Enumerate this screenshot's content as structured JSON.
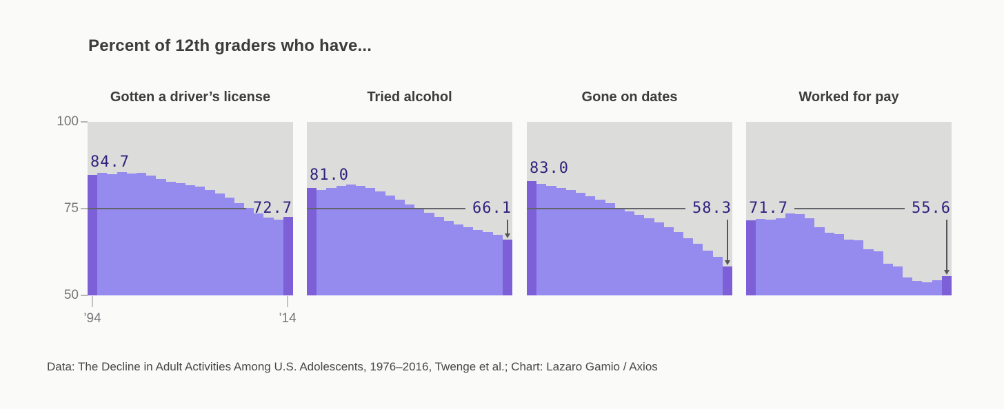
{
  "page": {
    "title": "Percent of 12th graders who have...",
    "footer": "Data: The Decline in Adult Activities Among U.S. Adolescents, 1976–2016, Twenge et al.; Chart: Lazaro Gamio / Axios"
  },
  "axis": {
    "y_ticks": [
      "100",
      "75",
      "50"
    ],
    "x_ticks": [
      "’94",
      "’14"
    ],
    "ylim": [
      50,
      100
    ],
    "ref_line": 75
  },
  "colors": {
    "fill": "#958aee",
    "accent_bar": "#7d60d8",
    "plot_bg": "#dcdcda",
    "value_label": "#31217d",
    "ref_line": "#63636a",
    "axis_text": "#76767a",
    "page_bg": "#fafaf8"
  },
  "chart_data": [
    {
      "type": "bar",
      "title": "Gotten a driver’s license",
      "start_label": "84.7",
      "end_label": "72.7",
      "arrow": false,
      "ylim": [
        50,
        100
      ],
      "ref_line": 75,
      "x_tick_labels": [
        "’94",
        "’14"
      ],
      "years": [
        1994,
        1995,
        1996,
        1997,
        1998,
        1999,
        2000,
        2001,
        2002,
        2003,
        2004,
        2005,
        2006,
        2007,
        2008,
        2009,
        2010,
        2011,
        2012,
        2013,
        2014
      ],
      "values": [
        84.7,
        85.4,
        85.0,
        85.6,
        85.1,
        85.3,
        84.5,
        83.6,
        82.7,
        82.3,
        81.8,
        81.4,
        80.3,
        79.3,
        78.1,
        76.6,
        75.2,
        73.7,
        72.4,
        71.9,
        72.7
      ]
    },
    {
      "type": "bar",
      "title": "Tried alcohol",
      "start_label": "81.0",
      "end_label": "66.1",
      "arrow": true,
      "ylim": [
        50,
        100
      ],
      "ref_line": 75,
      "years": [
        1994,
        1995,
        1996,
        1997,
        1998,
        1999,
        2000,
        2001,
        2002,
        2003,
        2004,
        2005,
        2006,
        2007,
        2008,
        2009,
        2010,
        2011,
        2012,
        2013,
        2014
      ],
      "values": [
        81.0,
        80.4,
        81.0,
        81.6,
        82.0,
        81.6,
        80.9,
        79.9,
        78.7,
        77.5,
        76.2,
        75.0,
        73.8,
        72.6,
        71.5,
        70.5,
        69.6,
        68.8,
        68.3,
        67.5,
        66.1
      ]
    },
    {
      "type": "bar",
      "title": "Gone on dates",
      "start_label": "83.0",
      "end_label": "58.3",
      "arrow": true,
      "ylim": [
        50,
        100
      ],
      "ref_line": 75,
      "years": [
        1994,
        1995,
        1996,
        1997,
        1998,
        1999,
        2000,
        2001,
        2002,
        2003,
        2004,
        2005,
        2006,
        2007,
        2008,
        2009,
        2010,
        2011,
        2012,
        2013,
        2014
      ],
      "values": [
        83.0,
        82.2,
        81.6,
        81.0,
        80.3,
        79.5,
        78.6,
        77.6,
        76.5,
        75.3,
        74.2,
        73.2,
        72.2,
        71.0,
        69.7,
        68.2,
        66.5,
        64.8,
        63.0,
        61.1,
        58.3
      ]
    },
    {
      "type": "bar",
      "title": "Worked for pay",
      "start_label": "71.7",
      "end_label": "55.6",
      "arrow": true,
      "ylim": [
        50,
        100
      ],
      "ref_line": 75,
      "years": [
        1994,
        1995,
        1996,
        1997,
        1998,
        1999,
        2000,
        2001,
        2002,
        2003,
        2004,
        2005,
        2006,
        2007,
        2008,
        2009,
        2010,
        2011,
        2012,
        2013,
        2014
      ],
      "values": [
        71.7,
        72.0,
        71.8,
        72.3,
        73.6,
        73.5,
        72.3,
        69.6,
        68.0,
        67.7,
        66.0,
        65.8,
        63.4,
        62.7,
        59.1,
        58.4,
        55.1,
        54.1,
        53.8,
        54.3,
        55.6
      ]
    }
  ]
}
